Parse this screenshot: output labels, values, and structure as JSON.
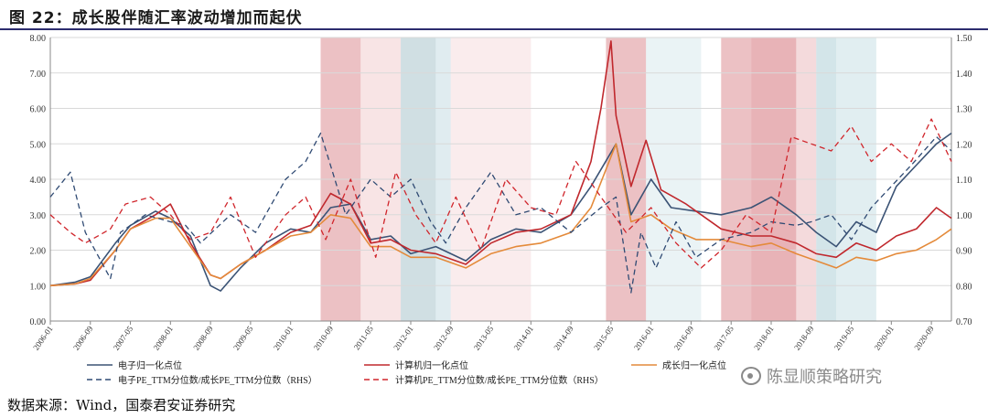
{
  "page": {
    "title": "图 22：成长股伴随汇率波动增加而起伏",
    "source": "数据来源：Wind，国泰君安证券研究",
    "watermark": "陈显顺策略研究"
  },
  "chart_data": {
    "type": "line",
    "title": "",
    "xlabel": "",
    "ylabel": "",
    "ylim": [
      0,
      8
    ],
    "y2lim": [
      0.7,
      1.5
    ],
    "yticks": [
      "0.00",
      "1.00",
      "2.00",
      "3.00",
      "4.00",
      "5.00",
      "6.00",
      "7.00",
      "8.00"
    ],
    "y2ticks": [
      "0.70",
      "0.80",
      "0.90",
      "1.00",
      "1.10",
      "1.20",
      "1.30",
      "1.40",
      "1.50"
    ],
    "x_start": "2006-01",
    "x_end": "2021-01",
    "xticks": [
      "2006-01",
      "2006-09",
      "2007-05",
      "2008-01",
      "2008-09",
      "2009-05",
      "2010-01",
      "2010-09",
      "2011-05",
      "2012-01",
      "2012-09",
      "2013-05",
      "2014-01",
      "2014-09",
      "2015-05",
      "2016-01",
      "2016-09",
      "2017-05",
      "2018-01",
      "2018-09",
      "2019-05",
      "2020-01",
      "2020-09"
    ],
    "grid": true,
    "legend_position": "bottom",
    "shaded_periods": [
      {
        "start": "2010-07",
        "end": "2011-03",
        "color": "#dc8e94",
        "opacity": 0.55
      },
      {
        "start": "2011-03",
        "end": "2011-11",
        "color": "#f1c9cc",
        "opacity": 0.5
      },
      {
        "start": "2011-11",
        "end": "2012-06",
        "color": "#a9c4cc",
        "opacity": 0.55
      },
      {
        "start": "2012-06",
        "end": "2012-09",
        "color": "#c7dde3",
        "opacity": 0.55
      },
      {
        "start": "2012-09",
        "end": "2014-01",
        "color": "#f6d9db",
        "opacity": 0.5
      },
      {
        "start": "2015-04",
        "end": "2015-12",
        "color": "#dc8e94",
        "opacity": 0.55
      },
      {
        "start": "2015-12",
        "end": "2016-11",
        "color": "#d9eaed",
        "opacity": 0.55
      },
      {
        "start": "2017-03",
        "end": "2017-09",
        "color": "#dc8e94",
        "opacity": 0.55
      },
      {
        "start": "2017-09",
        "end": "2018-06",
        "color": "#d98087",
        "opacity": 0.6
      },
      {
        "start": "2018-06",
        "end": "2018-10",
        "color": "#e9b6ba",
        "opacity": 0.5
      },
      {
        "start": "2018-10",
        "end": "2019-02",
        "color": "#b6d3db",
        "opacity": 0.6
      },
      {
        "start": "2019-02",
        "end": "2019-10",
        "color": "#cde2e7",
        "opacity": 0.6
      }
    ],
    "series": [
      {
        "name": "电子归一化点位",
        "axis": "left",
        "color": "#3b5375",
        "dash": "",
        "x": [
          "2006-01",
          "2006-06",
          "2006-09",
          "2007-02",
          "2007-05",
          "2007-10",
          "2008-01",
          "2008-05",
          "2008-09",
          "2008-11",
          "2009-03",
          "2009-08",
          "2010-01",
          "2010-05",
          "2010-09",
          "2011-01",
          "2011-05",
          "2011-09",
          "2012-01",
          "2012-06",
          "2012-12",
          "2013-05",
          "2013-10",
          "2014-03",
          "2014-09",
          "2015-01",
          "2015-06",
          "2015-09",
          "2016-01",
          "2016-05",
          "2016-10",
          "2017-03",
          "2017-09",
          "2018-01",
          "2018-06",
          "2018-10",
          "2019-02",
          "2019-06",
          "2019-10",
          "2020-02",
          "2020-06",
          "2020-10",
          "2021-01"
        ],
        "values": [
          1.0,
          1.1,
          1.25,
          2.2,
          2.7,
          3.1,
          2.9,
          2.4,
          1.0,
          0.85,
          1.5,
          2.2,
          2.6,
          2.5,
          3.2,
          3.3,
          2.3,
          2.4,
          1.9,
          2.1,
          1.7,
          2.3,
          2.6,
          2.5,
          3.0,
          3.8,
          5.0,
          3.0,
          4.0,
          3.2,
          3.1,
          3.0,
          3.2,
          3.5,
          3.0,
          2.5,
          2.1,
          2.8,
          2.5,
          3.8,
          4.4,
          5.0,
          5.3
        ]
      },
      {
        "name": "计算机归一化点位",
        "axis": "left",
        "color": "#c0282d",
        "dash": "",
        "x": [
          "2006-01",
          "2006-06",
          "2006-09",
          "2007-02",
          "2007-05",
          "2007-10",
          "2008-01",
          "2008-05",
          "2008-09",
          "2008-11",
          "2009-03",
          "2009-08",
          "2010-01",
          "2010-05",
          "2010-09",
          "2011-01",
          "2011-05",
          "2011-09",
          "2012-01",
          "2012-06",
          "2012-12",
          "2013-05",
          "2013-10",
          "2014-03",
          "2014-09",
          "2015-01",
          "2015-03",
          "2015-05",
          "2015-06",
          "2015-09",
          "2015-12",
          "2016-03",
          "2016-08",
          "2017-03",
          "2017-09",
          "2018-01",
          "2018-06",
          "2018-10",
          "2019-02",
          "2019-06",
          "2019-10",
          "2020-02",
          "2020-06",
          "2020-10",
          "2021-01"
        ],
        "values": [
          1.0,
          1.05,
          1.15,
          2.0,
          2.6,
          3.0,
          3.3,
          2.2,
          1.3,
          1.2,
          1.6,
          2.0,
          2.5,
          2.7,
          3.6,
          3.3,
          2.2,
          2.3,
          2.0,
          1.9,
          1.6,
          2.2,
          2.5,
          2.6,
          3.0,
          4.5,
          6.0,
          7.9,
          5.8,
          3.8,
          5.1,
          3.7,
          3.3,
          2.6,
          2.4,
          2.4,
          2.2,
          1.9,
          1.8,
          2.2,
          2.0,
          2.4,
          2.6,
          3.2,
          2.9
        ]
      },
      {
        "name": "成长归一化点位",
        "axis": "left",
        "color": "#e48a3a",
        "dash": "",
        "x": [
          "2006-01",
          "2006-06",
          "2006-09",
          "2007-02",
          "2007-05",
          "2007-10",
          "2008-01",
          "2008-05",
          "2008-09",
          "2008-11",
          "2009-03",
          "2009-08",
          "2010-01",
          "2010-05",
          "2010-09",
          "2011-01",
          "2011-05",
          "2011-09",
          "2012-01",
          "2012-06",
          "2012-12",
          "2013-05",
          "2013-10",
          "2014-03",
          "2014-09",
          "2015-01",
          "2015-06",
          "2015-09",
          "2016-01",
          "2016-05",
          "2016-10",
          "2017-03",
          "2017-09",
          "2018-01",
          "2018-06",
          "2018-10",
          "2019-02",
          "2019-06",
          "2019-10",
          "2020-02",
          "2020-06",
          "2020-10",
          "2021-01"
        ],
        "values": [
          1.0,
          1.05,
          1.2,
          2.0,
          2.6,
          2.9,
          2.9,
          2.1,
          1.3,
          1.2,
          1.6,
          2.0,
          2.4,
          2.5,
          3.0,
          2.9,
          2.1,
          2.1,
          1.8,
          1.8,
          1.5,
          1.9,
          2.1,
          2.2,
          2.5,
          3.2,
          5.0,
          2.8,
          3.0,
          2.6,
          2.3,
          2.3,
          2.1,
          2.2,
          1.9,
          1.7,
          1.5,
          1.8,
          1.7,
          1.9,
          2.0,
          2.3,
          2.6
        ]
      },
      {
        "name": "电子PE_TTM分位数/成长PE_TTM分位数（RHS）",
        "axis": "right",
        "color": "#2f4a73",
        "dash": "6,4",
        "x": [
          "2006-01",
          "2006-05",
          "2006-08",
          "2007-01",
          "2007-03",
          "2007-08",
          "2008-01",
          "2008-04",
          "2008-07",
          "2009-01",
          "2009-06",
          "2009-12",
          "2010-04",
          "2010-07",
          "2010-12",
          "2011-05",
          "2011-09",
          "2012-01",
          "2012-05",
          "2012-08",
          "2012-12",
          "2013-05",
          "2013-10",
          "2014-03",
          "2014-09",
          "2015-03",
          "2015-06",
          "2015-09",
          "2015-11",
          "2016-02",
          "2016-06",
          "2016-10",
          "2017-03",
          "2017-09",
          "2018-01",
          "2018-06",
          "2018-09",
          "2019-01",
          "2019-05",
          "2019-09",
          "2020-01",
          "2020-05",
          "2020-10",
          "2021-01"
        ],
        "values": [
          1.05,
          1.12,
          0.95,
          0.82,
          0.95,
          1.0,
          0.98,
          0.97,
          0.92,
          1.0,
          0.95,
          1.1,
          1.15,
          1.23,
          1.0,
          1.1,
          1.05,
          1.1,
          0.98,
          0.92,
          1.02,
          1.12,
          1.0,
          1.02,
          0.95,
          1.02,
          1.05,
          0.78,
          0.95,
          0.85,
          0.98,
          0.88,
          0.93,
          0.95,
          0.98,
          0.97,
          0.98,
          1.0,
          0.93,
          1.02,
          1.08,
          1.14,
          1.22,
          1.18
        ]
      },
      {
        "name": "计算机PE_TTM分位数/成长PE_TTM分位数（RHS）",
        "axis": "right",
        "color": "#d0252b",
        "dash": "6,4",
        "x": [
          "2006-01",
          "2006-05",
          "2006-08",
          "2007-01",
          "2007-04",
          "2007-09",
          "2008-01",
          "2008-05",
          "2008-09",
          "2009-01",
          "2009-06",
          "2009-12",
          "2010-04",
          "2010-08",
          "2011-01",
          "2011-06",
          "2011-10",
          "2012-02",
          "2012-06",
          "2012-10",
          "2013-03",
          "2013-08",
          "2014-01",
          "2014-06",
          "2014-10",
          "2015-03",
          "2015-08",
          "2016-01",
          "2016-06",
          "2016-11",
          "2017-03",
          "2017-08",
          "2018-01",
          "2018-05",
          "2018-09",
          "2019-01",
          "2019-05",
          "2019-09",
          "2020-01",
          "2020-05",
          "2020-09",
          "2021-01"
        ],
        "values": [
          1.0,
          0.95,
          0.92,
          0.96,
          1.03,
          1.05,
          1.0,
          0.93,
          0.95,
          1.05,
          0.88,
          1.0,
          1.05,
          0.93,
          1.1,
          0.88,
          1.12,
          1.0,
          0.92,
          1.05,
          0.9,
          1.1,
          1.02,
          1.0,
          1.15,
          1.05,
          0.95,
          1.02,
          0.92,
          0.85,
          0.9,
          1.0,
          0.95,
          1.22,
          1.2,
          1.18,
          1.25,
          1.15,
          1.2,
          1.15,
          1.27,
          1.15
        ]
      }
    ]
  }
}
